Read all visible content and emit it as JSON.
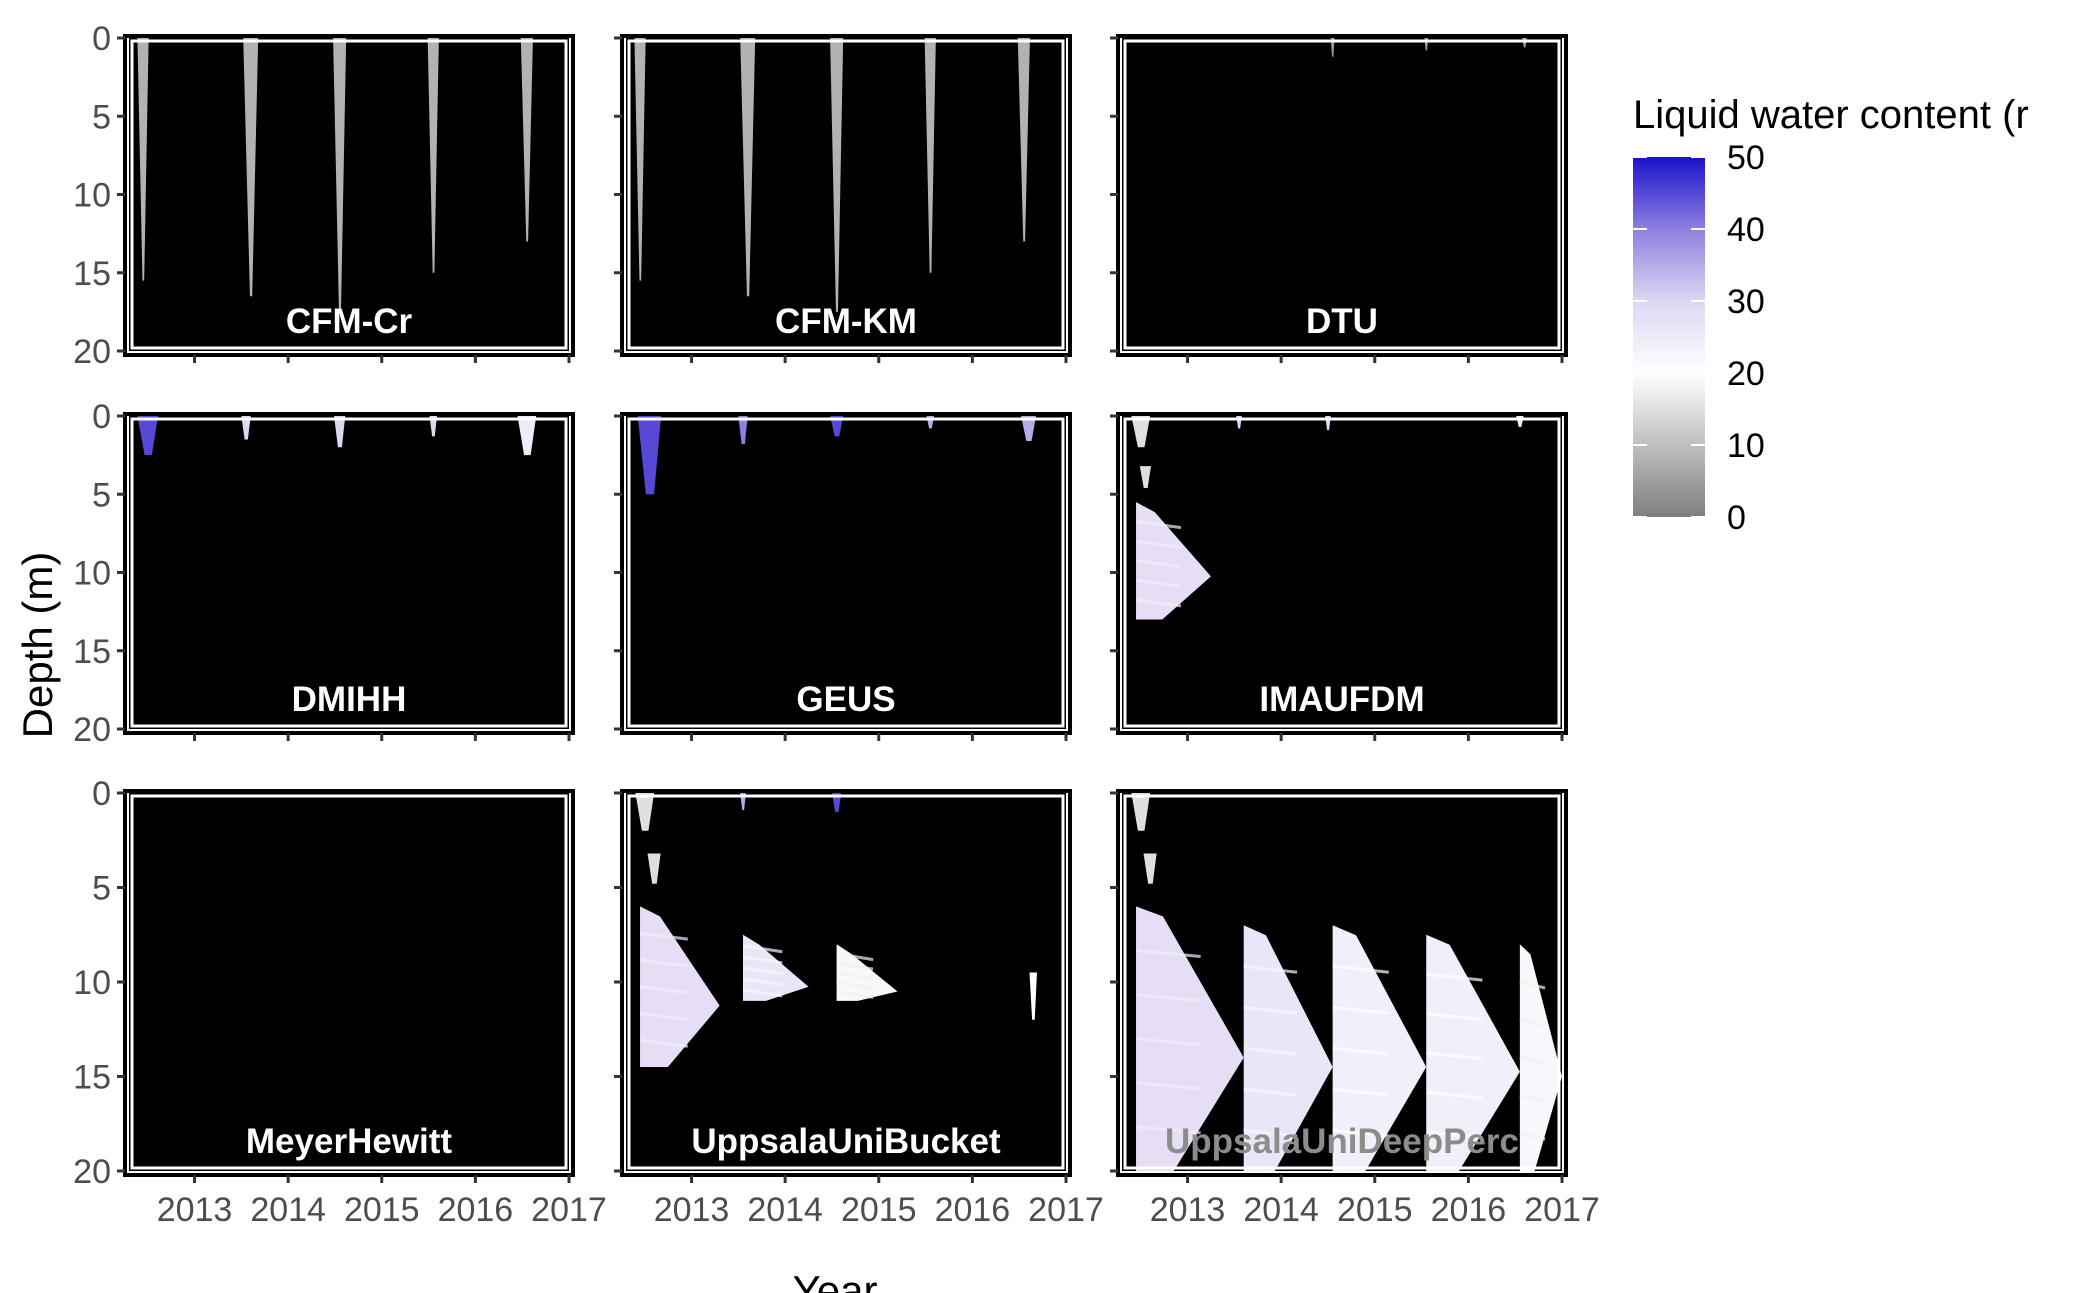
{
  "chart_data": {
    "type": "heatmap",
    "xlabel": "Year",
    "ylabel": "Depth (m)",
    "xlim": [
      2012.3,
      2017.0
    ],
    "ylim": [
      20,
      0
    ],
    "x_ticks": [
      2013,
      2014,
      2015,
      2016,
      2017
    ],
    "x_tick_labels": [
      "2013",
      "2014",
      "2015",
      "2016",
      "2017"
    ],
    "y_ticks": [
      0,
      5,
      10,
      15,
      20
    ],
    "y_tick_labels": [
      "0",
      "5",
      "10",
      "15",
      "20"
    ],
    "legend": {
      "title": "Liquid water content (r",
      "placement": "right",
      "range": [
        0,
        50
      ],
      "ticks": [
        0,
        10,
        20,
        30,
        40,
        50
      ],
      "tick_labels": [
        "0",
        "10",
        "20",
        "30",
        "40",
        "50"
      ],
      "colors": {
        "low": "#7f7f7f",
        "mid": "#ffffff",
        "high": "#1a12cc"
      }
    },
    "panel_background": "#000000",
    "panels": [
      {
        "name": "CFM-Cr",
        "row": 0,
        "col": 0,
        "label_dim": false,
        "features": [
          {
            "kind": "spike",
            "x": 2012.45,
            "top": 0,
            "bottom": 15.5,
            "width": 0.12,
            "value": 8
          },
          {
            "kind": "spike",
            "x": 2013.6,
            "top": 0,
            "bottom": 16.5,
            "width": 0.16,
            "value": 8
          },
          {
            "kind": "spike",
            "x": 2014.55,
            "top": 0,
            "bottom": 17.5,
            "width": 0.14,
            "value": 8
          },
          {
            "kind": "spike",
            "x": 2015.55,
            "top": 0,
            "bottom": 15.0,
            "width": 0.12,
            "value": 8
          },
          {
            "kind": "spike",
            "x": 2016.55,
            "top": 0,
            "bottom": 13.0,
            "width": 0.13,
            "value": 8
          }
        ]
      },
      {
        "name": "CFM-KM",
        "row": 0,
        "col": 1,
        "label_dim": false,
        "features": [
          {
            "kind": "spike",
            "x": 2012.45,
            "top": 0,
            "bottom": 15.5,
            "width": 0.12,
            "value": 8
          },
          {
            "kind": "spike",
            "x": 2013.6,
            "top": 0,
            "bottom": 16.5,
            "width": 0.16,
            "value": 8
          },
          {
            "kind": "spike",
            "x": 2014.55,
            "top": 0,
            "bottom": 17.5,
            "width": 0.14,
            "value": 8
          },
          {
            "kind": "spike",
            "x": 2015.55,
            "top": 0,
            "bottom": 15.0,
            "width": 0.12,
            "value": 8
          },
          {
            "kind": "spike",
            "x": 2016.55,
            "top": 0,
            "bottom": 13.0,
            "width": 0.13,
            "value": 8
          }
        ]
      },
      {
        "name": "DTU",
        "row": 0,
        "col": 2,
        "label_dim": false,
        "features": [
          {
            "kind": "blip",
            "x": 2014.55,
            "top": 0,
            "bottom": 1.2,
            "width": 0.04,
            "value": 5
          },
          {
            "kind": "blip",
            "x": 2015.55,
            "top": 0,
            "bottom": 0.8,
            "width": 0.04,
            "value": 5
          },
          {
            "kind": "blip",
            "x": 2016.6,
            "top": 0,
            "bottom": 0.6,
            "width": 0.05,
            "value": 5
          }
        ]
      },
      {
        "name": "DMIHH",
        "row": 1,
        "col": 0,
        "label_dim": false,
        "features": [
          {
            "kind": "blip",
            "x": 2012.5,
            "top": 0,
            "bottom": 2.5,
            "width": 0.22,
            "value": 45
          },
          {
            "kind": "blip",
            "x": 2013.55,
            "top": 0,
            "bottom": 1.5,
            "width": 0.1,
            "value": 30
          },
          {
            "kind": "blip",
            "x": 2014.55,
            "top": 0,
            "bottom": 2.0,
            "width": 0.12,
            "value": 30
          },
          {
            "kind": "blip",
            "x": 2015.55,
            "top": 0,
            "bottom": 1.3,
            "width": 0.08,
            "value": 30
          },
          {
            "kind": "blip",
            "x": 2016.55,
            "top": 0,
            "bottom": 2.5,
            "width": 0.2,
            "value": 25
          }
        ]
      },
      {
        "name": "GEUS",
        "row": 1,
        "col": 1,
        "label_dim": false,
        "features": [
          {
            "kind": "blip",
            "x": 2012.55,
            "top": 0,
            "bottom": 5.0,
            "width": 0.25,
            "value": 45
          },
          {
            "kind": "blip",
            "x": 2013.55,
            "top": 0,
            "bottom": 1.8,
            "width": 0.1,
            "value": 40
          },
          {
            "kind": "blip",
            "x": 2014.55,
            "top": 0,
            "bottom": 1.3,
            "width": 0.14,
            "value": 45
          },
          {
            "kind": "blip",
            "x": 2015.55,
            "top": 0,
            "bottom": 0.8,
            "width": 0.08,
            "value": 35
          },
          {
            "kind": "blip",
            "x": 2016.6,
            "top": 0,
            "bottom": 1.6,
            "width": 0.16,
            "value": 35
          }
        ]
      },
      {
        "name": "IMAUFDM",
        "row": 1,
        "col": 2,
        "label_dim": false,
        "features": [
          {
            "kind": "blip",
            "x": 2012.5,
            "top": 0,
            "bottom": 2.0,
            "width": 0.2,
            "value": 15
          },
          {
            "kind": "blip",
            "x": 2012.55,
            "top": 3.2,
            "bottom": 4.6,
            "width": 0.12,
            "value": 15
          },
          {
            "kind": "wedge",
            "x0": 2012.45,
            "x1": 2013.25,
            "top": 5.5,
            "bottom": 13.0,
            "value": 28
          },
          {
            "kind": "blip",
            "x": 2013.55,
            "top": 0,
            "bottom": 0.8,
            "width": 0.06,
            "value": 30
          },
          {
            "kind": "blip",
            "x": 2014.5,
            "top": 0,
            "bottom": 0.9,
            "width": 0.06,
            "value": 30
          },
          {
            "kind": "blip",
            "x": 2016.55,
            "top": 0,
            "bottom": 0.7,
            "width": 0.08,
            "value": 25
          }
        ]
      },
      {
        "name": "MeyerHewitt",
        "row": 2,
        "col": 0,
        "label_dim": false,
        "features": []
      },
      {
        "name": "UppsalaUniBucket",
        "row": 2,
        "col": 1,
        "label_dim": false,
        "features": [
          {
            "kind": "blip",
            "x": 2012.5,
            "top": 0,
            "bottom": 2.0,
            "width": 0.2,
            "value": 15
          },
          {
            "kind": "blip",
            "x": 2012.6,
            "top": 3.2,
            "bottom": 4.8,
            "width": 0.14,
            "value": 15
          },
          {
            "kind": "wedge",
            "x0": 2012.45,
            "x1": 2013.3,
            "top": 6.0,
            "bottom": 14.5,
            "value": 28
          },
          {
            "kind": "wedge",
            "x0": 2013.55,
            "x1": 2014.25,
            "top": 7.5,
            "bottom": 11.0,
            "value": 26
          },
          {
            "kind": "wedge",
            "x0": 2014.55,
            "x1": 2015.2,
            "top": 8.0,
            "bottom": 11.0,
            "value": 22
          },
          {
            "kind": "blip",
            "x": 2016.65,
            "top": 9.5,
            "bottom": 12.0,
            "width": 0.08,
            "value": 20
          },
          {
            "kind": "blip",
            "x": 2013.55,
            "top": 0,
            "bottom": 0.9,
            "width": 0.06,
            "value": 35
          },
          {
            "kind": "blip",
            "x": 2014.55,
            "top": 0,
            "bottom": 1.0,
            "width": 0.1,
            "value": 45
          }
        ]
      },
      {
        "name": "UppsalaUniDeepPerc",
        "row": 2,
        "col": 2,
        "label_dim": true,
        "features": [
          {
            "kind": "blip",
            "x": 2012.5,
            "top": 0,
            "bottom": 2.0,
            "width": 0.2,
            "value": 15
          },
          {
            "kind": "blip",
            "x": 2012.6,
            "top": 3.2,
            "bottom": 4.8,
            "width": 0.14,
            "value": 15
          },
          {
            "kind": "wedge",
            "x0": 2012.45,
            "x1": 2013.6,
            "top": 6.0,
            "bottom": 20.0,
            "value": 28
          },
          {
            "kind": "wedge",
            "x0": 2013.6,
            "x1": 2014.55,
            "top": 7.0,
            "bottom": 20.0,
            "value": 26
          },
          {
            "kind": "wedge",
            "x0": 2014.55,
            "x1": 2015.55,
            "top": 7.0,
            "bottom": 20.0,
            "value": 24
          },
          {
            "kind": "wedge",
            "x0": 2015.55,
            "x1": 2016.55,
            "top": 7.5,
            "bottom": 20.0,
            "value": 24
          },
          {
            "kind": "wedge",
            "x0": 2016.55,
            "x1": 2017.0,
            "top": 8.0,
            "bottom": 20.0,
            "value": 22
          }
        ]
      }
    ]
  }
}
